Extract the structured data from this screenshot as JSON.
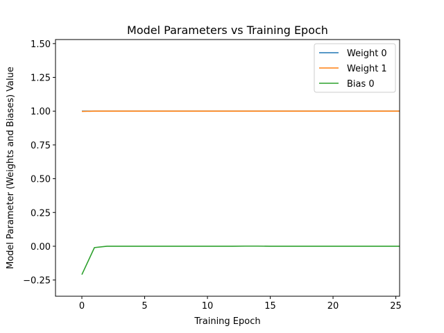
{
  "chart_data": {
    "type": "line",
    "title": "Model Parameters vs Training Epoch",
    "xlabel": "Training Epoch",
    "ylabel": "Model Parameter (Weights and Biases) Value",
    "xlim": [
      -2.1,
      25.3
    ],
    "ylim": [
      -0.37,
      1.53
    ],
    "xticks": [
      0,
      5,
      10,
      15,
      20,
      25
    ],
    "xtick_labels": [
      "0",
      "5",
      "10",
      "15",
      "20",
      "25"
    ],
    "yticks": [
      -0.25,
      0.0,
      0.25,
      0.5,
      0.75,
      1.0,
      1.25,
      1.5
    ],
    "ytick_labels": [
      "−0.25",
      "0.00",
      "0.25",
      "0.50",
      "0.75",
      "1.00",
      "1.25",
      "1.50"
    ],
    "grid": false,
    "legend_position": "top-right",
    "x": [
      0,
      1,
      2,
      3,
      4,
      5,
      6,
      7,
      8,
      9,
      10,
      11,
      12,
      13,
      14,
      15,
      16,
      17,
      18,
      19,
      20,
      21,
      22,
      23,
      24,
      25,
      26
    ],
    "series": [
      {
        "name": "Weight 0",
        "color": "#1f77b4",
        "values": [
          1.0,
          1.0,
          1.0,
          1.0,
          1.0,
          1.0,
          1.0,
          1.0,
          1.0,
          1.0,
          1.0,
          1.0,
          1.0,
          1.0,
          1.0,
          1.0,
          1.0,
          1.0,
          1.0,
          1.0,
          1.0,
          1.0,
          1.0,
          1.0,
          1.0,
          1.0,
          1.0
        ]
      },
      {
        "name": "Weight 1",
        "color": "#ff7f0e",
        "values": [
          0.998,
          1.0,
          1.0,
          1.0,
          1.0,
          1.0,
          1.0,
          1.0,
          1.0,
          1.0,
          1.0,
          1.0,
          1.0,
          1.0,
          1.0,
          1.0,
          1.0,
          1.0,
          1.0,
          1.0,
          1.0,
          1.0,
          1.0,
          1.0,
          1.0,
          1.0,
          1.0
        ]
      },
      {
        "name": "Bias 0",
        "color": "#2ca02c",
        "values": [
          -0.21,
          -0.01,
          0.0,
          0.0,
          0.0,
          0.0,
          0.0,
          0.0,
          0.0,
          0.0,
          0.0,
          0.0,
          0.0,
          0.001,
          0.001,
          0.0,
          0.0,
          0.0,
          0.0,
          0.0,
          0.0,
          0.0,
          0.0,
          0.0,
          0.0,
          0.0,
          0.0
        ]
      }
    ]
  }
}
